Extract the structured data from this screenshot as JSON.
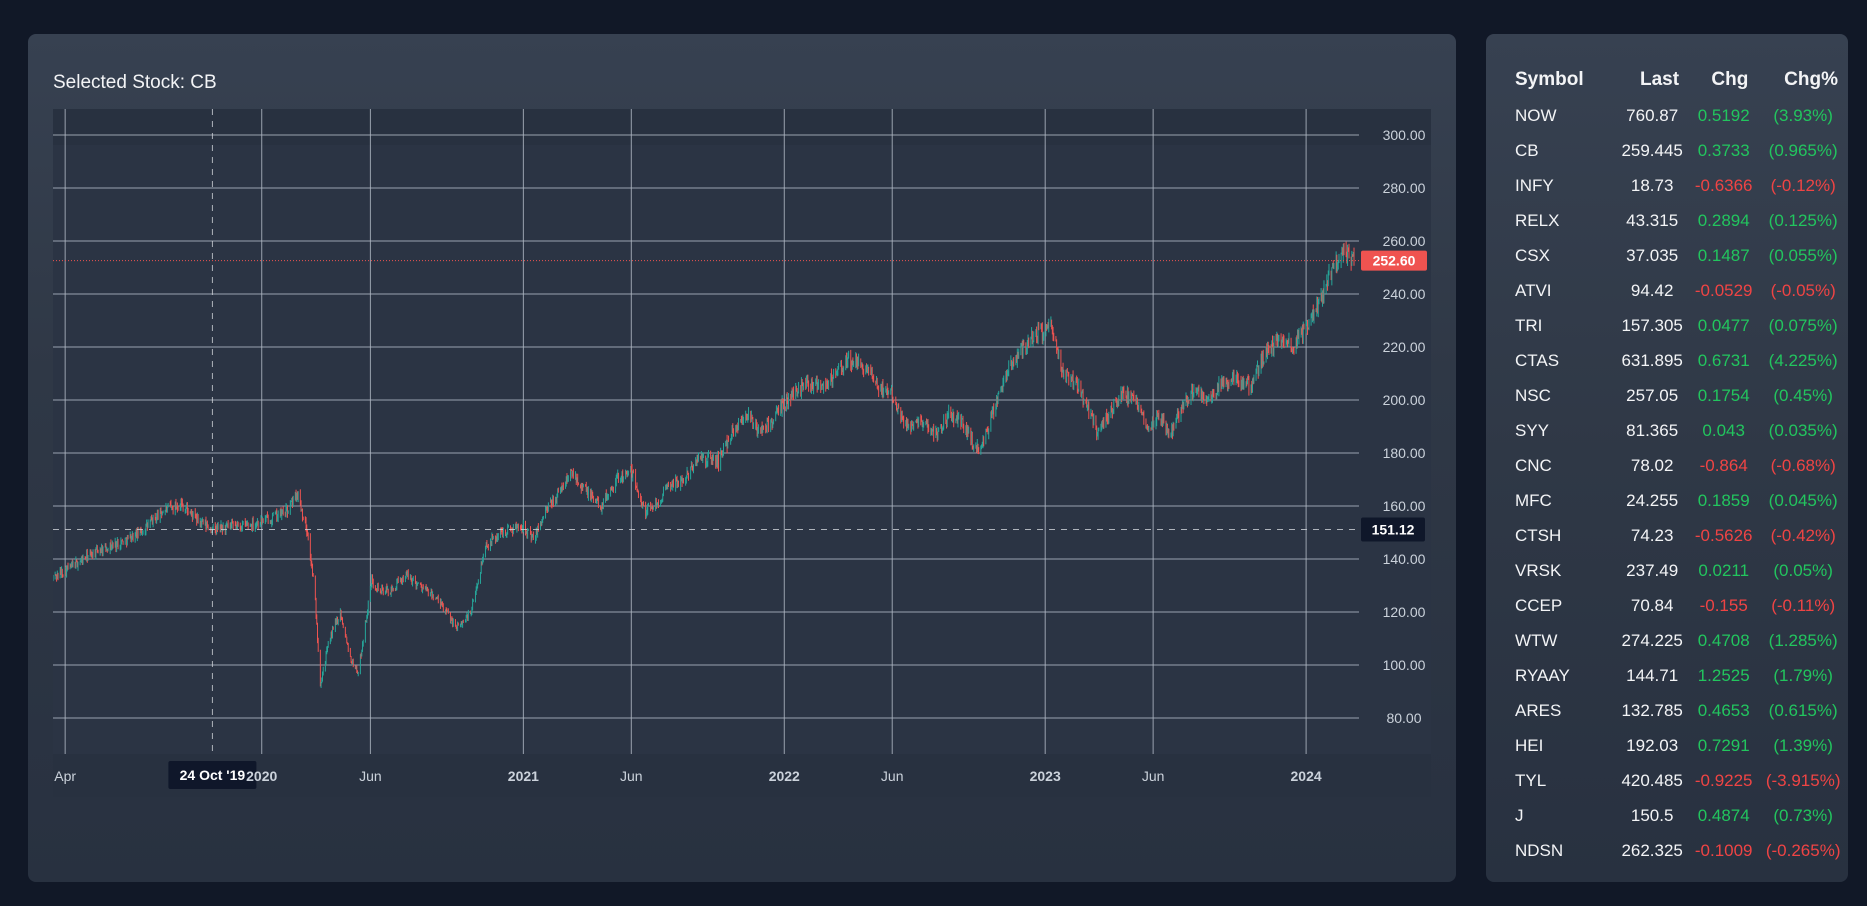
{
  "chart": {
    "title": "Selected Stock: CB",
    "price_labels": [
      "300.00",
      "280.00",
      "260.00",
      "240.00",
      "220.00",
      "200.00",
      "180.00",
      "160.00",
      "140.00",
      "120.00",
      "100.00",
      "80.00"
    ],
    "time_labels": [
      {
        "text": "Apr",
        "bold": false
      },
      {
        "text": "2020",
        "bold": true
      },
      {
        "text": "Jun",
        "bold": false
      },
      {
        "text": "2021",
        "bold": true
      },
      {
        "text": "Jun",
        "bold": false
      },
      {
        "text": "2022",
        "bold": true
      },
      {
        "text": "Jun",
        "bold": false
      },
      {
        "text": "2023",
        "bold": true
      },
      {
        "text": "Jun",
        "bold": false
      },
      {
        "text": "2024",
        "bold": true
      }
    ],
    "crosshair_date": "24 Oct '19",
    "crosshair_price": "151.12",
    "last_price": "252.60",
    "colors": {
      "up": "#26a69a",
      "down": "#ef5350",
      "last_price_badge": "#ef5350",
      "crosshair_badge": "#0f172a"
    }
  },
  "chart_data": {
    "type": "candlestick",
    "symbol": "CB",
    "y_range": [
      60,
      312
    ],
    "x_range": [
      "2019-03-15",
      "2024-03-15"
    ],
    "grid": true,
    "last_price": 252.6,
    "crosshair": {
      "date": "2019-10-24",
      "price": 151.12
    },
    "path": [
      [
        "2019-03-15",
        133
      ],
      [
        "2019-04-15",
        138
      ],
      [
        "2019-05-15",
        143
      ],
      [
        "2019-06-15",
        146
      ],
      [
        "2019-07-15",
        150
      ],
      [
        "2019-08-15",
        158
      ],
      [
        "2019-09-10",
        161
      ],
      [
        "2019-10-01",
        155
      ],
      [
        "2019-10-24",
        151
      ],
      [
        "2019-11-15",
        152
      ],
      [
        "2019-12-15",
        153
      ],
      [
        "2020-01-10",
        155
      ],
      [
        "2020-02-05",
        158
      ],
      [
        "2020-02-20",
        165
      ],
      [
        "2020-03-05",
        150
      ],
      [
        "2020-03-15",
        128
      ],
      [
        "2020-03-23",
        93
      ],
      [
        "2020-04-05",
        110
      ],
      [
        "2020-04-20",
        120
      ],
      [
        "2020-05-05",
        102
      ],
      [
        "2020-05-15",
        97
      ],
      [
        "2020-06-03",
        132
      ],
      [
        "2020-06-15",
        128
      ],
      [
        "2020-07-01",
        128
      ],
      [
        "2020-07-20",
        134
      ],
      [
        "2020-08-10",
        130
      ],
      [
        "2020-09-01",
        125
      ],
      [
        "2020-09-15",
        120
      ],
      [
        "2020-10-01",
        114
      ],
      [
        "2020-10-20",
        120
      ],
      [
        "2020-11-09",
        145
      ],
      [
        "2020-12-01",
        150
      ],
      [
        "2021-01-01",
        153
      ],
      [
        "2021-01-15",
        147
      ],
      [
        "2021-02-01",
        158
      ],
      [
        "2021-02-15",
        163
      ],
      [
        "2021-03-10",
        173
      ],
      [
        "2021-04-01",
        165
      ],
      [
        "2021-04-20",
        160
      ],
      [
        "2021-05-10",
        170
      ],
      [
        "2021-06-01",
        173
      ],
      [
        "2021-06-20",
        158
      ],
      [
        "2021-07-10",
        162
      ],
      [
        "2021-07-25",
        168
      ],
      [
        "2021-08-15",
        170
      ],
      [
        "2021-09-01",
        178
      ],
      [
        "2021-10-01",
        177
      ],
      [
        "2021-10-20",
        188
      ],
      [
        "2021-11-10",
        195
      ],
      [
        "2021-11-25",
        188
      ],
      [
        "2021-12-15",
        192
      ],
      [
        "2022-01-05",
        200
      ],
      [
        "2022-02-01",
        207
      ],
      [
        "2022-03-01",
        206
      ],
      [
        "2022-04-01",
        215
      ],
      [
        "2022-04-25",
        212
      ],
      [
        "2022-05-10",
        205
      ],
      [
        "2022-06-01",
        203
      ],
      [
        "2022-06-20",
        190
      ],
      [
        "2022-07-10",
        193
      ],
      [
        "2022-08-01",
        187
      ],
      [
        "2022-08-20",
        195
      ],
      [
        "2022-09-10",
        190
      ],
      [
        "2022-10-01",
        180
      ],
      [
        "2022-10-20",
        195
      ],
      [
        "2022-11-10",
        212
      ],
      [
        "2022-12-01",
        220
      ],
      [
        "2022-12-20",
        225
      ],
      [
        "2023-01-10",
        227
      ],
      [
        "2023-01-25",
        210
      ],
      [
        "2023-02-10",
        208
      ],
      [
        "2023-03-01",
        198
      ],
      [
        "2023-03-15",
        188
      ],
      [
        "2023-04-01",
        195
      ],
      [
        "2023-04-20",
        203
      ],
      [
        "2023-05-10",
        198
      ],
      [
        "2023-05-25",
        190
      ],
      [
        "2023-06-10",
        195
      ],
      [
        "2023-06-25",
        187
      ],
      [
        "2023-07-15",
        200
      ],
      [
        "2023-08-01",
        203
      ],
      [
        "2023-08-20",
        200
      ],
      [
        "2023-09-05",
        206
      ],
      [
        "2023-09-25",
        208
      ],
      [
        "2023-10-15",
        205
      ],
      [
        "2023-11-05",
        218
      ],
      [
        "2023-11-25",
        223
      ],
      [
        "2023-12-15",
        220
      ],
      [
        "2024-01-01",
        227
      ],
      [
        "2024-01-20",
        238
      ],
      [
        "2024-02-05",
        248
      ],
      [
        "2024-02-20",
        256
      ],
      [
        "2024-03-10",
        252.6
      ]
    ]
  },
  "watchlist": {
    "headers": [
      "Symbol",
      "Last",
      "Chg",
      "Chg%"
    ],
    "rows": [
      {
        "symbol": "NOW",
        "last": "760.87",
        "chg": "0.5192",
        "pct": "(3.93%)",
        "dir": "up"
      },
      {
        "symbol": "CB",
        "last": "259.445",
        "chg": "0.3733",
        "pct": "(0.965%)",
        "dir": "up"
      },
      {
        "symbol": "INFY",
        "last": "18.73",
        "chg": "-0.6366",
        "pct": "(-0.12%)",
        "dir": "down"
      },
      {
        "symbol": "RELX",
        "last": "43.315",
        "chg": "0.2894",
        "pct": "(0.125%)",
        "dir": "up"
      },
      {
        "symbol": "CSX",
        "last": "37.035",
        "chg": "0.1487",
        "pct": "(0.055%)",
        "dir": "up"
      },
      {
        "symbol": "ATVI",
        "last": "94.42",
        "chg": "-0.0529",
        "pct": "(-0.05%)",
        "dir": "down"
      },
      {
        "symbol": "TRI",
        "last": "157.305",
        "chg": "0.0477",
        "pct": "(0.075%)",
        "dir": "up"
      },
      {
        "symbol": "CTAS",
        "last": "631.895",
        "chg": "0.6731",
        "pct": "(4.225%)",
        "dir": "up"
      },
      {
        "symbol": "NSC",
        "last": "257.05",
        "chg": "0.1754",
        "pct": "(0.45%)",
        "dir": "up"
      },
      {
        "symbol": "SYY",
        "last": "81.365",
        "chg": "0.043",
        "pct": "(0.035%)",
        "dir": "up"
      },
      {
        "symbol": "CNC",
        "last": "78.02",
        "chg": "-0.864",
        "pct": "(-0.68%)",
        "dir": "down"
      },
      {
        "symbol": "MFC",
        "last": "24.255",
        "chg": "0.1859",
        "pct": "(0.045%)",
        "dir": "up"
      },
      {
        "symbol": "CTSH",
        "last": "74.23",
        "chg": "-0.5626",
        "pct": "(-0.42%)",
        "dir": "down"
      },
      {
        "symbol": "VRSK",
        "last": "237.49",
        "chg": "0.0211",
        "pct": "(0.05%)",
        "dir": "up"
      },
      {
        "symbol": "CCEP",
        "last": "70.84",
        "chg": "-0.155",
        "pct": "(-0.11%)",
        "dir": "down"
      },
      {
        "symbol": "WTW",
        "last": "274.225",
        "chg": "0.4708",
        "pct": "(1.285%)",
        "dir": "up"
      },
      {
        "symbol": "RYAAY",
        "last": "144.71",
        "chg": "1.2525",
        "pct": "(1.79%)",
        "dir": "up"
      },
      {
        "symbol": "ARES",
        "last": "132.785",
        "chg": "0.4653",
        "pct": "(0.615%)",
        "dir": "up"
      },
      {
        "symbol": "HEI",
        "last": "192.03",
        "chg": "0.7291",
        "pct": "(1.39%)",
        "dir": "up"
      },
      {
        "symbol": "TYL",
        "last": "420.485",
        "chg": "-0.9225",
        "pct": "(-3.915%)",
        "dir": "down"
      },
      {
        "symbol": "J",
        "last": "150.5",
        "chg": "0.4874",
        "pct": "(0.73%)",
        "dir": "up"
      },
      {
        "symbol": "NDSN",
        "last": "262.325",
        "chg": "-0.1009",
        "pct": "(-0.265%)",
        "dir": "down"
      }
    ]
  }
}
